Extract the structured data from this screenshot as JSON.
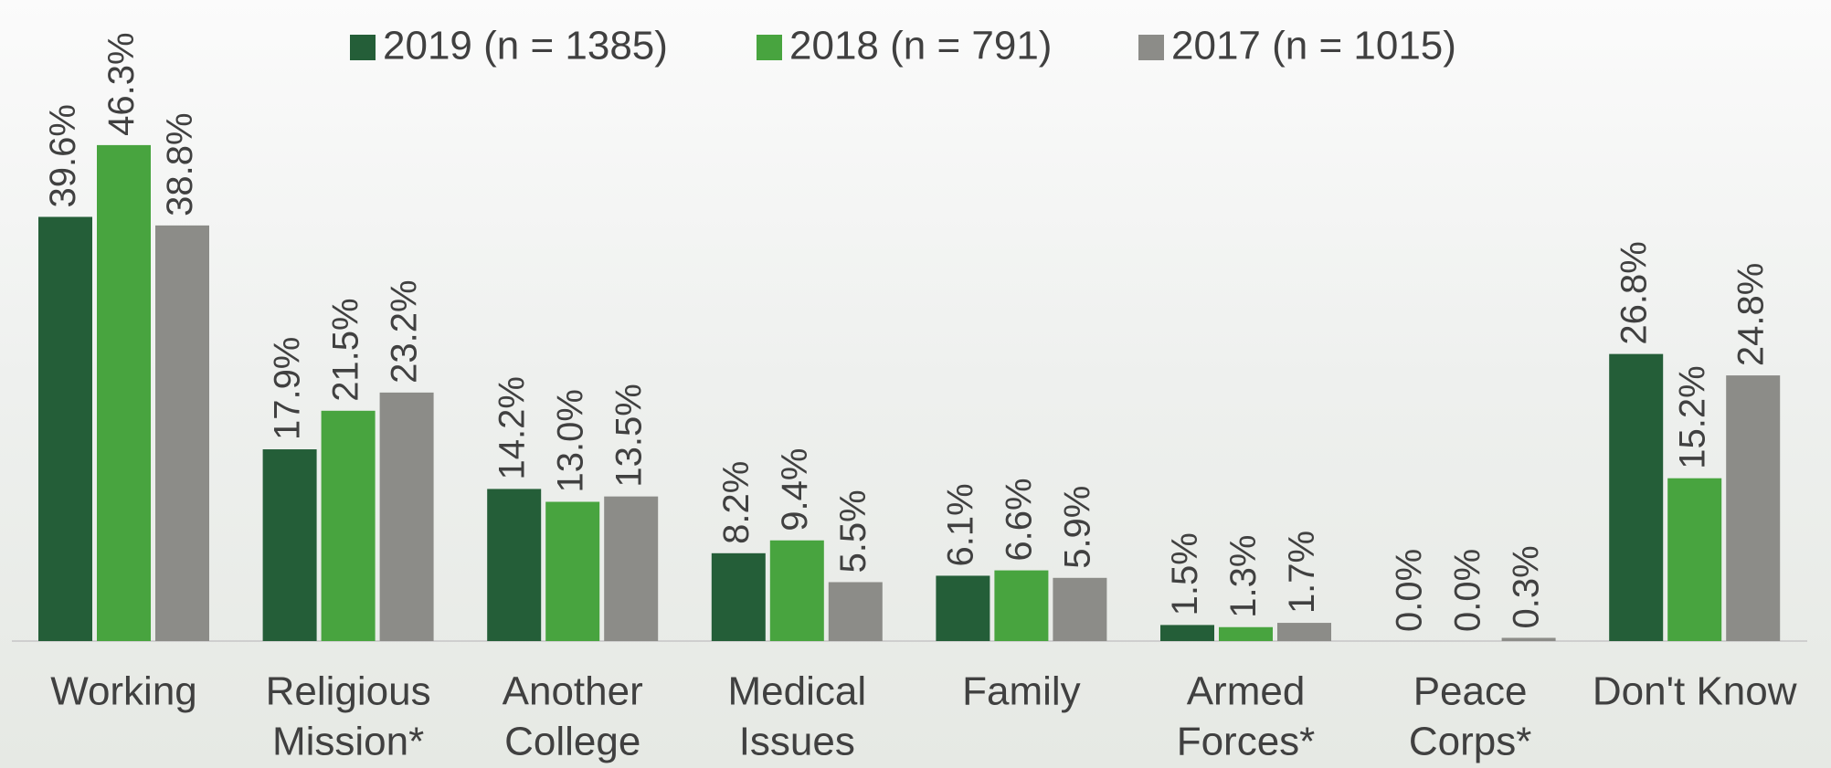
{
  "chart_data": {
    "type": "bar",
    "categories": [
      [
        "Working"
      ],
      [
        "Religious",
        "Mission*"
      ],
      [
        "Another",
        "College"
      ],
      [
        "Medical",
        "Issues"
      ],
      [
        "Family"
      ],
      [
        "Armed",
        "Forces*"
      ],
      [
        "Peace",
        "Corps*"
      ],
      [
        "Don't Know"
      ]
    ],
    "series": [
      {
        "name": "2019 (n = 1385)",
        "color": "#245e38",
        "values": [
          39.6,
          17.9,
          14.2,
          8.2,
          6.1,
          1.5,
          0.0,
          26.8
        ],
        "value_labels": [
          "39.6%",
          "17.9%",
          "14.2%",
          "8.2%",
          "6.1%",
          "1.5%",
          "0.0%",
          "26.8%"
        ]
      },
      {
        "name": "2018 (n = 791)",
        "color": "#48a43f",
        "values": [
          46.3,
          21.5,
          13.0,
          9.4,
          6.6,
          1.3,
          0.0,
          15.2
        ],
        "value_labels": [
          "46.3%",
          "21.5%",
          "13.0%",
          "9.4%",
          "6.6%",
          "1.3%",
          "0.0%",
          "15.2%"
        ]
      },
      {
        "name": "2017 (n = 1015)",
        "color": "#8c8c88",
        "values": [
          38.8,
          23.2,
          13.5,
          5.5,
          5.9,
          1.7,
          0.3,
          24.8
        ],
        "value_labels": [
          "38.8%",
          "23.2%",
          "13.5%",
          "5.5%",
          "5.9%",
          "1.7%",
          "0.3%",
          "24.8%"
        ]
      }
    ]
  }
}
